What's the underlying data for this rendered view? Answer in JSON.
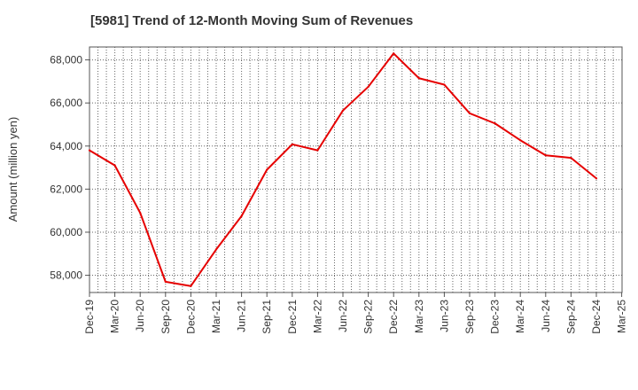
{
  "chart_data": {
    "type": "line",
    "title": "[5981]  Trend of 12-Month Moving Sum of Revenues",
    "xlabel": "",
    "ylabel": "Amount (million yen)",
    "ylim": [
      57200,
      68600
    ],
    "y_ticks": [
      58000,
      60000,
      62000,
      64000,
      66000,
      68000
    ],
    "y_tick_labels": [
      "58,000",
      "60,000",
      "62,000",
      "64,000",
      "66,000",
      "68,000"
    ],
    "x_tick_labels": [
      "Dec-19",
      "Mar-20",
      "Jun-20",
      "Sep-20",
      "Dec-20",
      "Mar-21",
      "Jun-21",
      "Sep-21",
      "Dec-21",
      "Mar-22",
      "Jun-22",
      "Sep-22",
      "Dec-22",
      "Mar-23",
      "Jun-23",
      "Sep-23",
      "Dec-23",
      "Mar-24",
      "Jun-24",
      "Sep-24",
      "Dec-24",
      "Mar-25"
    ],
    "grid": true,
    "series": [
      {
        "color": "#e60000",
        "x": [
          "Dec-19",
          "Mar-20",
          "Jun-20",
          "Sep-20",
          "Dec-20",
          "Mar-21",
          "Jun-21",
          "Sep-21",
          "Dec-21",
          "Mar-22",
          "Jun-22",
          "Sep-22",
          "Dec-22",
          "Mar-23",
          "Jun-23",
          "Sep-23",
          "Dec-23",
          "Mar-24",
          "Jun-24",
          "Sep-24",
          "Dec-24"
        ],
        "values": [
          63800,
          63100,
          60900,
          57700,
          57500,
          59200,
          60750,
          62900,
          64080,
          63800,
          65650,
          66750,
          68300,
          67150,
          66850,
          65520,
          65050,
          64270,
          63570,
          63450,
          62500
        ]
      }
    ]
  }
}
